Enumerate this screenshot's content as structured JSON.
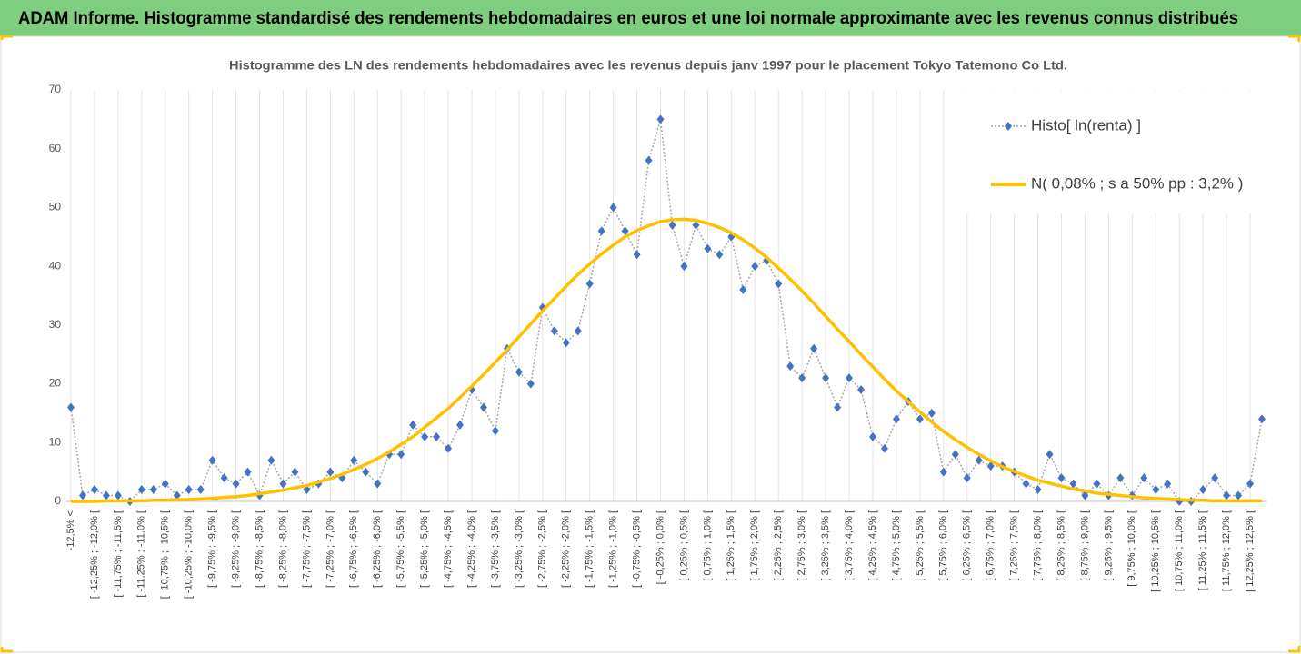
{
  "chart_data": {
    "type": "line",
    "title": "ADAM Informe. Histogramme standardisé des rendements hebdomadaires en euros et une loi normale approximante avec les revenus connus distribués",
    "subtitle": "Histogramme des LN des rendements hebdomadaires avec les revenus depuis janv 1997 pour le placement Tokyo Tatemono Co Ltd.",
    "categories": [
      "-12,5% <",
      null,
      "[ -12,25% ; -12,0% [",
      null,
      "[ -11,75% ; -11,5% [",
      null,
      "[ -11,25% ; -11,0% [",
      null,
      "[ -10,75% ; -10,5% [",
      null,
      "[ -10,25% ; -10,0% [",
      null,
      "[ -9,75% ; -9,5% [",
      null,
      "[ -9,25% ; -9,0% [",
      null,
      "[ -8,75% ; -8,5% [",
      null,
      "[ -8,25% ; -8,0% [",
      null,
      "[ -7,75% ; -7,5% [",
      null,
      "[ -7,25% ; -7,0% [",
      null,
      "[ -6,75% ; -6,5% [",
      null,
      "[ -6,25% ; -6,0% [",
      null,
      "[ -5,75% ; -5,5% [",
      null,
      "[ -5,25% ; -5,0% [",
      null,
      "[ -4,75% ; -4,5% [",
      null,
      "[ -4,25% ; -4,0% [",
      null,
      "[ -3,75% ; -3,5% [",
      null,
      "[ -3,25% ; -3,0% [",
      null,
      "[ -2,75% ; -2,5% [",
      null,
      "[ -2,25% ; -2,0% [",
      null,
      "[ -1,75% ; -1,5% [",
      null,
      "[ -1,25% ; -1,0% [",
      null,
      "[ -0,75% ; -0,5% [",
      null,
      "[ -0,25% ; 0,0% [",
      null,
      "[ 0,25% ; 0,5% [",
      null,
      "[ 0,75% ; 1,0% [",
      null,
      "[ 1,25% ; 1,5% [",
      null,
      "[ 1,75% ; 2,0% [",
      null,
      "[ 2,25% ; 2,5% [",
      null,
      "[ 2,75% ; 3,0% [",
      null,
      "[ 3,25% ; 3,5% [",
      null,
      "[ 3,75% ; 4,0% [",
      null,
      "[ 4,25% ; 4,5% [",
      null,
      "[ 4,75% ; 5,0% [",
      null,
      "[ 5,25% ; 5,5% [",
      null,
      "[ 5,75% ; 6,0% [",
      null,
      "[ 6,25% ; 6,5% [",
      null,
      "[ 6,75% ; 7,0% [",
      null,
      "[ 7,25% ; 7,5% [",
      null,
      "[ 7,75% ; 8,0% [",
      null,
      "[ 8,25% ; 8,5% [",
      null,
      "[ 8,75% ; 9,0% [",
      null,
      "[ 9,25% ; 9,5% [",
      null,
      "[ 9,75% ; 10,0% [",
      null,
      "[ 10,25% ; 10,5% [",
      null,
      "[ 10,75% ; 11,0% [",
      null,
      "[ 11,25% ; 11,5% [",
      null,
      "[ 11,75% ; 12,0% [",
      null,
      "[ 12,25% ; 12,5% [",
      null
    ],
    "series": [
      {
        "name": "Histo[ ln(renta) ]",
        "color": "#4472c4",
        "line_color": "#a6a6a6",
        "dotted": true,
        "values": [
          16,
          1,
          2,
          1,
          1,
          0,
          2,
          2,
          3,
          1,
          2,
          2,
          7,
          4,
          3,
          5,
          1,
          7,
          3,
          5,
          2,
          3,
          5,
          4,
          7,
          5,
          3,
          8,
          8,
          13,
          11,
          11,
          9,
          13,
          19,
          16,
          12,
          26,
          22,
          20,
          33,
          29,
          27,
          29,
          37,
          46,
          50,
          46,
          42,
          58,
          65,
          47,
          40,
          47,
          43,
          42,
          45,
          36,
          40,
          41,
          37,
          23,
          21,
          26,
          21,
          16,
          21,
          19,
          11,
          9,
          14,
          17,
          14,
          15,
          5,
          8,
          4,
          7,
          6,
          6,
          5,
          3,
          2,
          8,
          4,
          3,
          1,
          3,
          1,
          4,
          1,
          4,
          2,
          3,
          0,
          0,
          2,
          4,
          1,
          1,
          3,
          14
        ]
      },
      {
        "name": "N( 0,08% ; s a 50% pp : 3,2% )",
        "color": "#ffc000",
        "dotted": false,
        "values": [
          0.0,
          0.0,
          0.0,
          0.1,
          0.1,
          0.1,
          0.1,
          0.2,
          0.2,
          0.3,
          0.3,
          0.4,
          0.5,
          0.7,
          0.8,
          1.0,
          1.3,
          1.6,
          1.9,
          2.3,
          2.7,
          3.3,
          3.9,
          4.6,
          5.4,
          6.3,
          7.3,
          8.4,
          9.7,
          11.0,
          12.6,
          14.2,
          15.8,
          17.7,
          19.6,
          21.6,
          23.7,
          25.8,
          28.0,
          30.2,
          32.4,
          34.5,
          36.6,
          38.6,
          40.4,
          42.1,
          43.6,
          45.0,
          46.1,
          46.9,
          47.6,
          47.9,
          48.0,
          47.8,
          47.3,
          46.6,
          45.7,
          44.5,
          43.1,
          41.5,
          39.7,
          37.8,
          35.8,
          33.7,
          31.5,
          29.3,
          27.2,
          25.0,
          22.9,
          20.8,
          18.8,
          17.0,
          15.2,
          13.5,
          11.9,
          10.5,
          9.2,
          8.0,
          6.9,
          5.9,
          5.1,
          4.3,
          3.6,
          3.1,
          2.6,
          2.1,
          1.8,
          1.4,
          1.2,
          1.0,
          0.8,
          0.6,
          0.5,
          0.4,
          0.3,
          0.2,
          0.2,
          0.1,
          0.1,
          0.1,
          0.1,
          0.1
        ]
      }
    ],
    "ylim": [
      0,
      70
    ],
    "yticks": [
      0,
      10,
      20,
      30,
      40,
      50,
      60,
      70
    ],
    "grid": "x",
    "legend": "top-right"
  }
}
